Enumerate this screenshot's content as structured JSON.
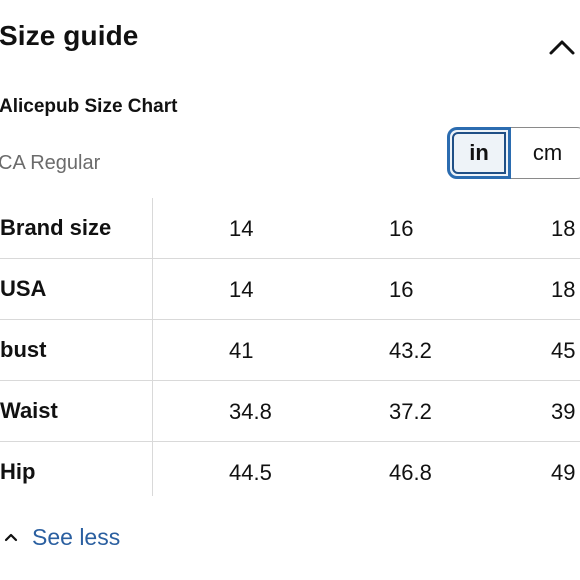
{
  "header": {
    "title": "Size guide",
    "collapse_icon": "chevron-up-icon"
  },
  "chart": {
    "title": "Alicepub Size Chart",
    "region": "CA Regular"
  },
  "units": {
    "options": [
      "in",
      "cm"
    ],
    "selected": "in"
  },
  "table": {
    "rows": [
      {
        "label": "Brand size",
        "values": [
          "14",
          "16",
          "18"
        ]
      },
      {
        "label": "USA",
        "values": [
          "14",
          "16",
          "18"
        ]
      },
      {
        "label": "bust",
        "values": [
          "41",
          "43.2",
          "45"
        ]
      },
      {
        "label": "Waist",
        "values": [
          "34.8",
          "37.2",
          "39"
        ]
      },
      {
        "label": "Hip",
        "values": [
          "44.5",
          "46.8",
          "49"
        ]
      }
    ]
  },
  "footer": {
    "see_less_label": "See less",
    "see_less_icon": "chevron-up-icon",
    "link_color": "#2a5fa0"
  },
  "colors": {
    "selected_border": "#2b6cb0",
    "divider": "#d9d9d9",
    "muted_text": "#6b6b6b"
  }
}
